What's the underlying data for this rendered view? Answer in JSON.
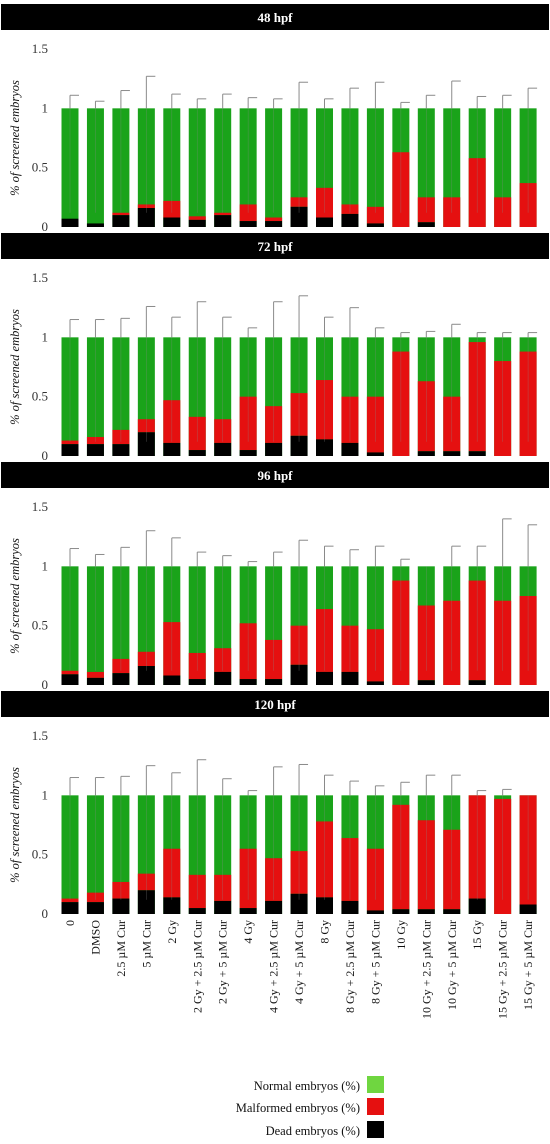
{
  "chart_data": {
    "type": "bar",
    "stacked": true,
    "ylabel": "% of screened embryos",
    "ylim": [
      0,
      1.5
    ],
    "yticks": [
      "0",
      "0.5",
      "1",
      "1.5"
    ],
    "grid": false,
    "legend_placement": "bottom-right",
    "categories": [
      "0",
      "DMSO",
      "2.5 µM Cur",
      "5 µM Cur",
      "2 Gy",
      "2 Gy + 2.5 µM Cur",
      "2 Gy + 5 µM Cur",
      "4 Gy",
      "4 Gy + 2.5 µM Cur",
      "4 Gy + 5 µM Cur",
      "8 Gy",
      "8 Gy + 2.5 µM Cur",
      "8 Gy + 5 µM Cur",
      "10 Gy",
      "10 Gy + 2.5 µM Cur",
      "10 Gy + 5 µM Cur",
      "15 Gy",
      "15 Gy + 2.5 µM Cur",
      "15 Gy + 5 µM Cur"
    ],
    "legend": [
      {
        "label": "Normal embryos (%)",
        "color": "#6fd640"
      },
      {
        "label": "Malformed embryos (%)",
        "color": "#e51010"
      },
      {
        "label": "Dead embryos (%)",
        "color": "#000000"
      }
    ],
    "colors": {
      "normal": "#1aa31a",
      "malformed": "#e51010",
      "dead": "#000000",
      "error": "#8a8a8a"
    },
    "panels": [
      {
        "title": "48 hpf",
        "dead": [
          0.07,
          0.03,
          0.1,
          0.16,
          0.08,
          0.06,
          0.1,
          0.05,
          0.05,
          0.17,
          0.08,
          0.11,
          0.03,
          0.0,
          0.04,
          0.0,
          0.0,
          0.0,
          0.0
        ],
        "malformed": [
          0.0,
          0.0,
          0.02,
          0.03,
          0.14,
          0.03,
          0.02,
          0.14,
          0.03,
          0.08,
          0.25,
          0.08,
          0.14,
          0.63,
          0.21,
          0.25,
          0.58,
          0.25,
          0.37
        ],
        "error": [
          1.11,
          1.06,
          1.15,
          1.27,
          1.12,
          1.08,
          1.12,
          1.09,
          1.08,
          1.22,
          1.08,
          1.17,
          1.22,
          1.05,
          1.11,
          1.23,
          1.1,
          1.11,
          1.17
        ]
      },
      {
        "title": "72 hpf",
        "dead": [
          0.1,
          0.1,
          0.1,
          0.2,
          0.11,
          0.05,
          0.11,
          0.05,
          0.11,
          0.17,
          0.14,
          0.11,
          0.03,
          0.0,
          0.04,
          0.04,
          0.04,
          0.0,
          0.0
        ],
        "malformed": [
          0.03,
          0.06,
          0.12,
          0.11,
          0.36,
          0.28,
          0.2,
          0.45,
          0.31,
          0.36,
          0.5,
          0.39,
          0.47,
          0.88,
          0.59,
          0.46,
          0.92,
          0.8,
          0.88
        ],
        "error": [
          1.15,
          1.15,
          1.16,
          1.26,
          1.17,
          1.3,
          1.17,
          1.08,
          1.3,
          1.35,
          1.17,
          1.25,
          1.08,
          1.04,
          1.05,
          1.11,
          1.04,
          1.04,
          1.04
        ]
      },
      {
        "title": "96 hpf",
        "dead": [
          0.09,
          0.06,
          0.1,
          0.16,
          0.08,
          0.05,
          0.11,
          0.05,
          0.05,
          0.17,
          0.11,
          0.11,
          0.03,
          0.0,
          0.04,
          0.0,
          0.04,
          0.0,
          0.0
        ],
        "malformed": [
          0.03,
          0.05,
          0.12,
          0.12,
          0.45,
          0.22,
          0.2,
          0.47,
          0.33,
          0.33,
          0.53,
          0.39,
          0.44,
          0.88,
          0.63,
          0.71,
          0.84,
          0.71,
          0.75
        ],
        "error": [
          1.15,
          1.1,
          1.16,
          1.3,
          1.24,
          1.12,
          1.09,
          1.04,
          1.12,
          1.22,
          1.17,
          1.14,
          1.17,
          1.06,
          1.0,
          1.17,
          1.17,
          1.4,
          1.35
        ]
      },
      {
        "title": "120 hpf",
        "dead": [
          0.1,
          0.1,
          0.13,
          0.2,
          0.14,
          0.05,
          0.11,
          0.05,
          0.11,
          0.17,
          0.14,
          0.11,
          0.03,
          0.04,
          0.04,
          0.04,
          0.13,
          0.0,
          0.08
        ],
        "malformed": [
          0.03,
          0.08,
          0.14,
          0.14,
          0.41,
          0.28,
          0.22,
          0.5,
          0.36,
          0.36,
          0.64,
          0.53,
          0.52,
          0.88,
          0.75,
          0.67,
          0.87,
          0.97,
          0.92
        ],
        "error": [
          1.15,
          1.15,
          1.16,
          1.25,
          1.19,
          1.3,
          1.14,
          1.04,
          1.24,
          1.26,
          1.17,
          1.12,
          1.08,
          1.11,
          1.17,
          1.17,
          1.04,
          1.05,
          1.0
        ]
      }
    ]
  }
}
